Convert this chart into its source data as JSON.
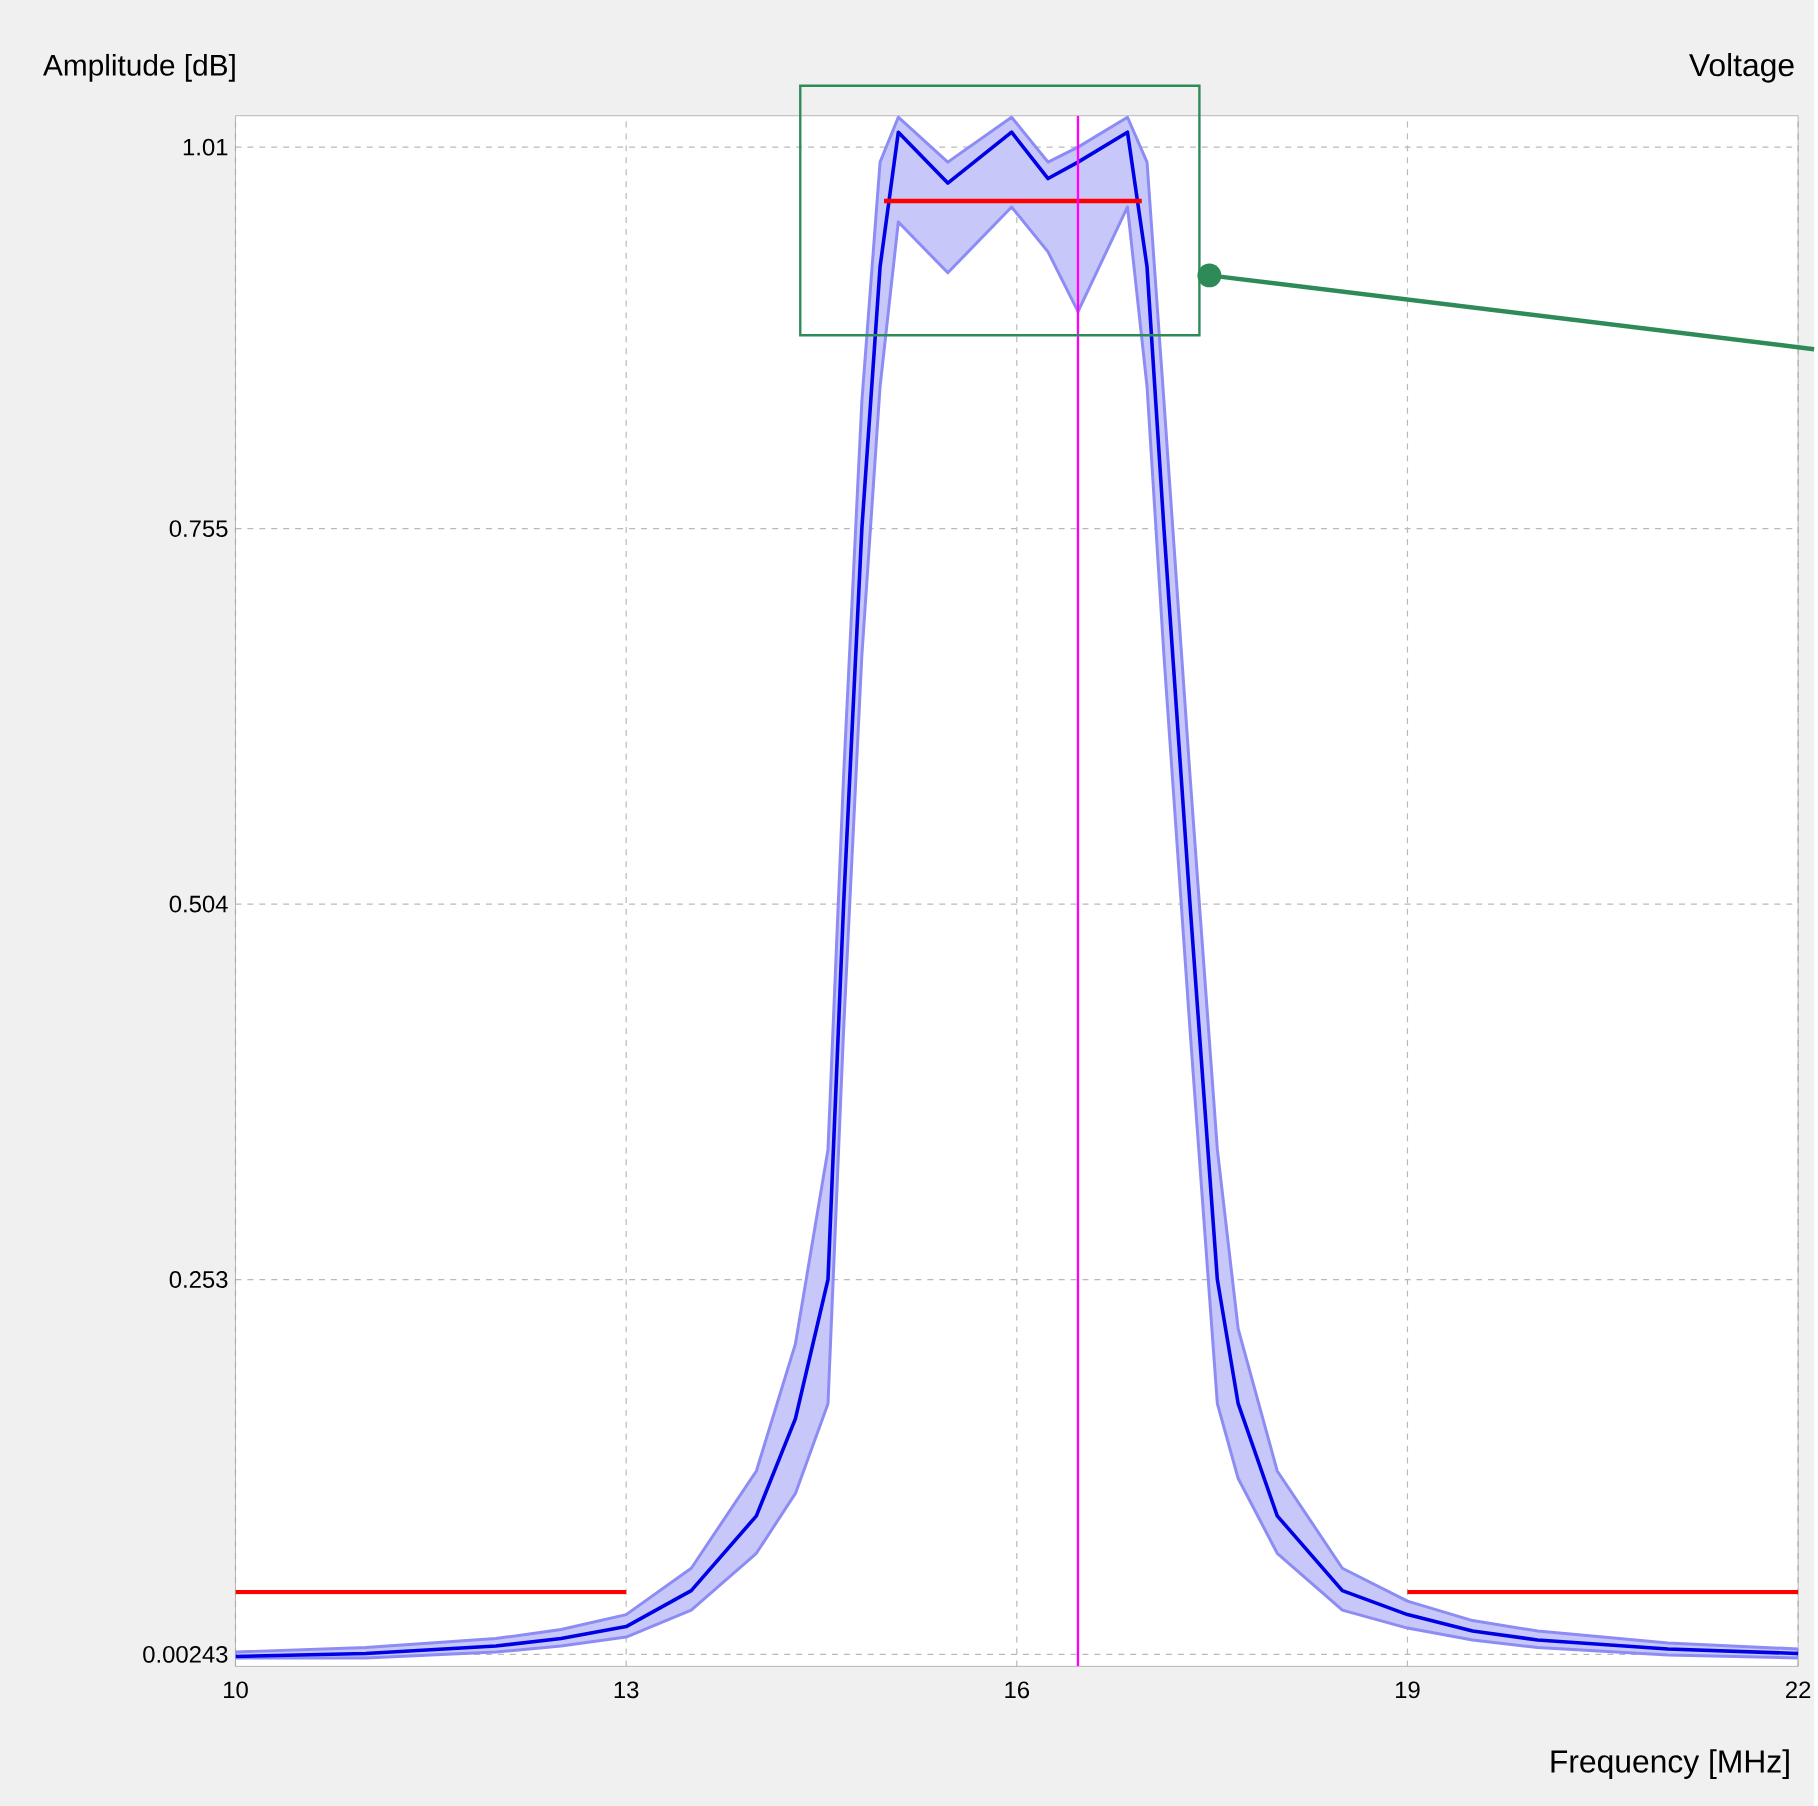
{
  "chart_data": {
    "type": "line",
    "title": "Voltage",
    "xlabel": "Frequency [MHz]",
    "ylabel": "Amplitude [dB]",
    "xlim": [
      10,
      22
    ],
    "ylim": [
      -0.0056,
      1.031
    ],
    "xticks": [
      10,
      13,
      16,
      19,
      22
    ],
    "yticks": [
      0.00243,
      0.253,
      0.504,
      0.755,
      1.01
    ],
    "grid": true,
    "marker": "none",
    "line_style": "solid",
    "series": [
      {
        "color": "#0000e6",
        "x": [
          10.0,
          11.0,
          12.0,
          12.5,
          13.0,
          13.5,
          14.0,
          14.3,
          14.55,
          14.67,
          14.81,
          14.95,
          15.09,
          15.47,
          15.96,
          16.24,
          16.47,
          16.85,
          17.0,
          17.13,
          17.33,
          17.54,
          17.7,
          18.0,
          18.5,
          19.0,
          19.5,
          20.0,
          21.0,
          22.0
        ],
        "values": [
          0.001,
          0.003,
          0.008,
          0.013,
          0.021,
          0.045,
          0.095,
          0.16,
          0.253,
          0.504,
          0.755,
          0.93,
          1.02,
          0.986,
          1.02,
          0.989,
          1.0,
          1.02,
          0.93,
          0.755,
          0.504,
          0.253,
          0.17,
          0.095,
          0.045,
          0.029,
          0.018,
          0.012,
          0.006,
          0.003
        ],
        "lower": [
          0.0,
          0.0,
          0.004,
          0.008,
          0.014,
          0.032,
          0.07,
          0.11,
          0.17,
          0.42,
          0.67,
          0.85,
          0.96,
          0.926,
          0.97,
          0.94,
          0.9,
          0.97,
          0.85,
          0.67,
          0.42,
          0.17,
          0.12,
          0.07,
          0.032,
          0.02,
          0.012,
          0.007,
          0.002,
          0.0
        ],
        "upper": [
          0.004,
          0.007,
          0.013,
          0.019,
          0.029,
          0.06,
          0.125,
          0.21,
          0.34,
          0.59,
          0.84,
          1.0,
          1.03,
          1.0,
          1.03,
          1.0,
          1.01,
          1.03,
          1.0,
          0.84,
          0.59,
          0.34,
          0.22,
          0.125,
          0.06,
          0.038,
          0.025,
          0.018,
          0.01,
          0.006
        ]
      },
      {
        "color": "#ff0000",
        "x": [
          10,
          13,
          16,
          19,
          22
        ],
        "values": [
          0.044,
          0.044,
          null,
          0.044,
          0.044
        ]
      },
      {
        "color": "#ff0000",
        "x": [
          14.98,
          16.96
        ],
        "values": [
          0.974,
          0.974
        ]
      }
    ],
    "ref_lines": [
      {
        "axis": "x",
        "value": 16.47,
        "color": "#ff00ff"
      }
    ]
  }
}
